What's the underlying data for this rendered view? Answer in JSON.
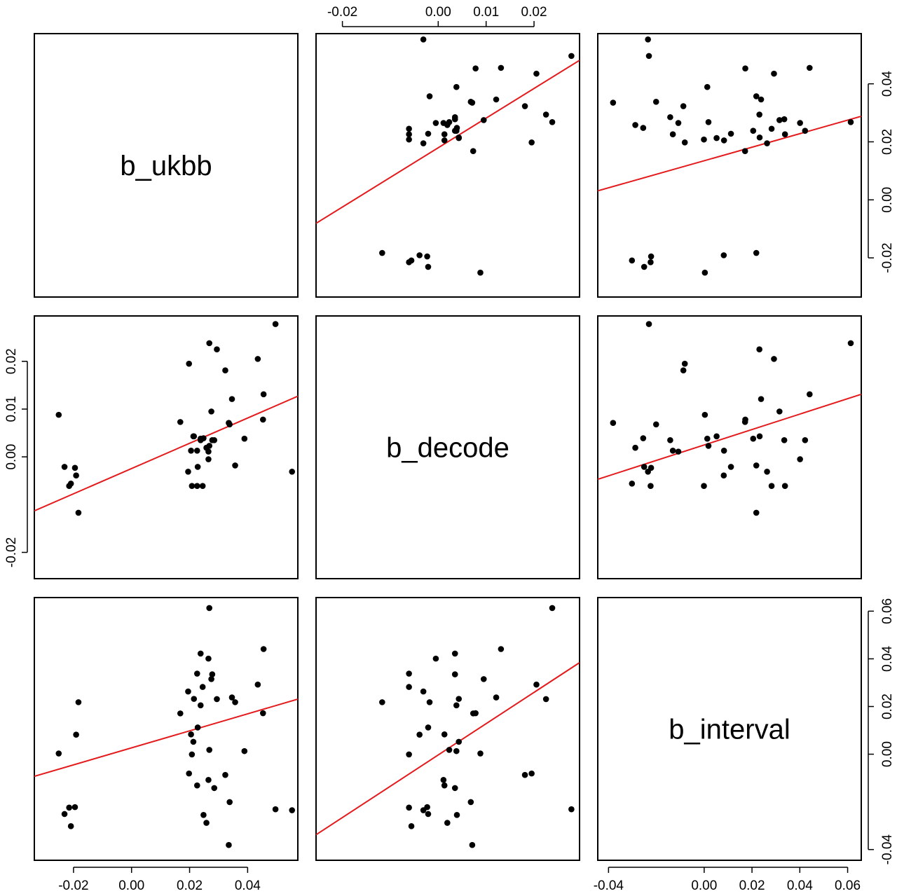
{
  "colors": {
    "points": "#000000",
    "fit_line": "#e41a1c",
    "frame": "#000000",
    "background": "#ffffff"
  },
  "chart_data": {
    "type": "scatter",
    "layout": "pairs-matrix",
    "variables": [
      "b_ukbb",
      "b_decode",
      "b_interval"
    ],
    "ranges": {
      "b_ukbb": [
        -0.0335,
        0.0573
      ],
      "b_decode": [
        -0.0255,
        0.0295
      ],
      "b_interval": [
        -0.0445,
        0.0657
      ]
    },
    "ticks": {
      "b_ukbb": [
        -0.02,
        0.0,
        0.02,
        0.04
      ],
      "b_decode": [
        -0.02,
        0.0,
        0.01,
        0.02
      ],
      "b_interval": [
        -0.04,
        0.0,
        0.02,
        0.04,
        0.06
      ]
    },
    "tick_labels": {
      "b_ukbb": [
        "-0.02",
        "0.00",
        "0.02",
        "0.04"
      ],
      "b_decode": [
        "-0.02",
        "0.00",
        "0.01",
        "0.02"
      ],
      "b_interval": [
        "-0.04",
        "0.00",
        "0.02",
        "0.04",
        "0.06"
      ]
    },
    "axis_label_positions": {
      "b_ukbb": [
        "bottom",
        "right"
      ],
      "b_decode": [
        "top",
        "left"
      ],
      "b_interval": [
        "bottom",
        "right"
      ]
    },
    "fit_lines": {
      "b_ukbb|b_decode": [
        -0.0335,
        -0.0113,
        0.0573,
        0.0127
      ],
      "b_interval|b_decode": [
        -0.0445,
        -0.0047,
        0.0657,
        0.0131
      ],
      "b_decode|b_ukbb": [
        -0.0255,
        -0.0081,
        0.0295,
        0.0481
      ],
      "b_interval|b_ukbb": [
        -0.0445,
        0.0031,
        0.0657,
        0.0288
      ],
      "b_ukbb|b_interval": [
        -0.0335,
        -0.0093,
        0.0573,
        0.0231
      ],
      "b_decode|b_interval": [
        -0.0255,
        -0.0338,
        0.0295,
        0.0384
      ]
    },
    "points": {
      "b_ukbb": [
        -0.0251,
        -0.0231,
        -0.0195,
        -0.0191,
        -0.0209,
        -0.0215,
        -0.0183,
        0.0168,
        0.0205,
        0.0228,
        0.0268,
        0.0265,
        0.0278,
        0.0238,
        0.0213,
        0.0198,
        0.0226,
        0.0208,
        0.0245,
        0.0294,
        0.0323,
        0.0338,
        0.0346,
        0.0389,
        0.0435,
        0.0455,
        0.0453,
        0.0496,
        0.0357,
        0.0553,
        0.0258,
        0.0238,
        0.0275,
        0.0215,
        0.0285,
        0.0226,
        0.0335,
        0.0265,
        0.0248,
        0.0195,
        0.0268
      ],
      "b_decode": [
        0.0088,
        -0.0021,
        -0.0023,
        -0.0039,
        -0.0056,
        -0.0061,
        -0.0117,
        0.0073,
        0.0013,
        -0.0021,
        0.0023,
        0.0011,
        0.0035,
        0.0035,
        0.0043,
        0.0195,
        -0.0061,
        -0.0061,
        -0.0061,
        0.0225,
        0.0181,
        0.0068,
        0.0121,
        0.0038,
        0.0205,
        0.0131,
        0.0078,
        0.0278,
        -0.0018,
        -0.0031,
        0.0019,
        0.0038,
        0.0095,
        0.0043,
        0.0035,
        0.0013,
        0.0071,
        -0.0005,
        0.0039,
        -0.0031,
        0.0238
      ],
      "b_interval": [
        0.0003,
        -0.0251,
        -0.0222,
        0.0082,
        -0.0302,
        -0.0224,
        0.0218,
        0.0171,
        0.0083,
        0.0112,
        0.0018,
        -0.0108,
        0.0335,
        0.0422,
        0.0052,
        -0.0081,
        0.0338,
        -0.0001,
        0.0282,
        0.0231,
        -0.0087,
        -0.0201,
        0.0238,
        0.0013,
        0.0292,
        0.0441,
        0.0172,
        -0.0231,
        0.0218,
        -0.0235,
        -0.0288,
        0.0205,
        0.0315,
        0.0232,
        -0.0142,
        -0.0131,
        -0.0381,
        0.0401,
        -0.0255,
        0.0263,
        0.0613
      ]
    }
  }
}
